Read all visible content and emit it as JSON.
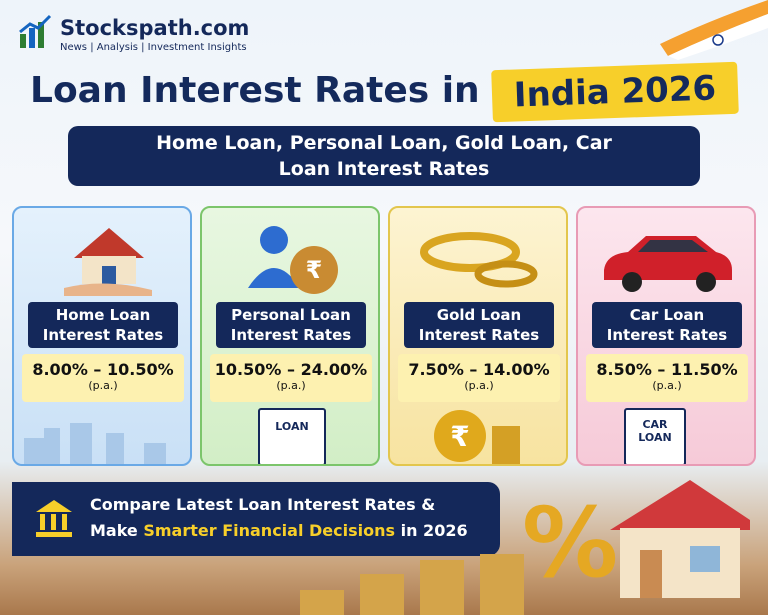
{
  "brand": {
    "name": "Stockspath.com",
    "tagline": "News | Analysis | Investment Insights"
  },
  "header": {
    "title": "Loan Interest Rates in",
    "highlight": "India 2026",
    "subtitle": "Home Loan, Personal Loan, Gold Loan, Car Loan Interest Rates"
  },
  "cards": [
    {
      "title": "Home Loan Interest Rates",
      "rate": "8.00% – 10.50%",
      "note": "(p.a.)"
    },
    {
      "title": "Personal Loan Interest Rates",
      "rate": "10.50% – 24.00%",
      "note": "(p.a.)",
      "badge": "LOAN"
    },
    {
      "title": "Gold Loan Interest Rates",
      "rate": "7.50% – 14.00%",
      "note": "(p.a.)"
    },
    {
      "title": "Car Loan Interest Rates",
      "rate": "8.50% – 11.50%",
      "note": "(p.a.)",
      "badge": "CAR LOAN"
    }
  ],
  "footer": {
    "line1": "Compare Latest Loan Interest Rates &",
    "lead": "Make",
    "highlight": "Smarter Financial Decisions",
    "tail": "in 2026",
    "symbol": "%"
  }
}
